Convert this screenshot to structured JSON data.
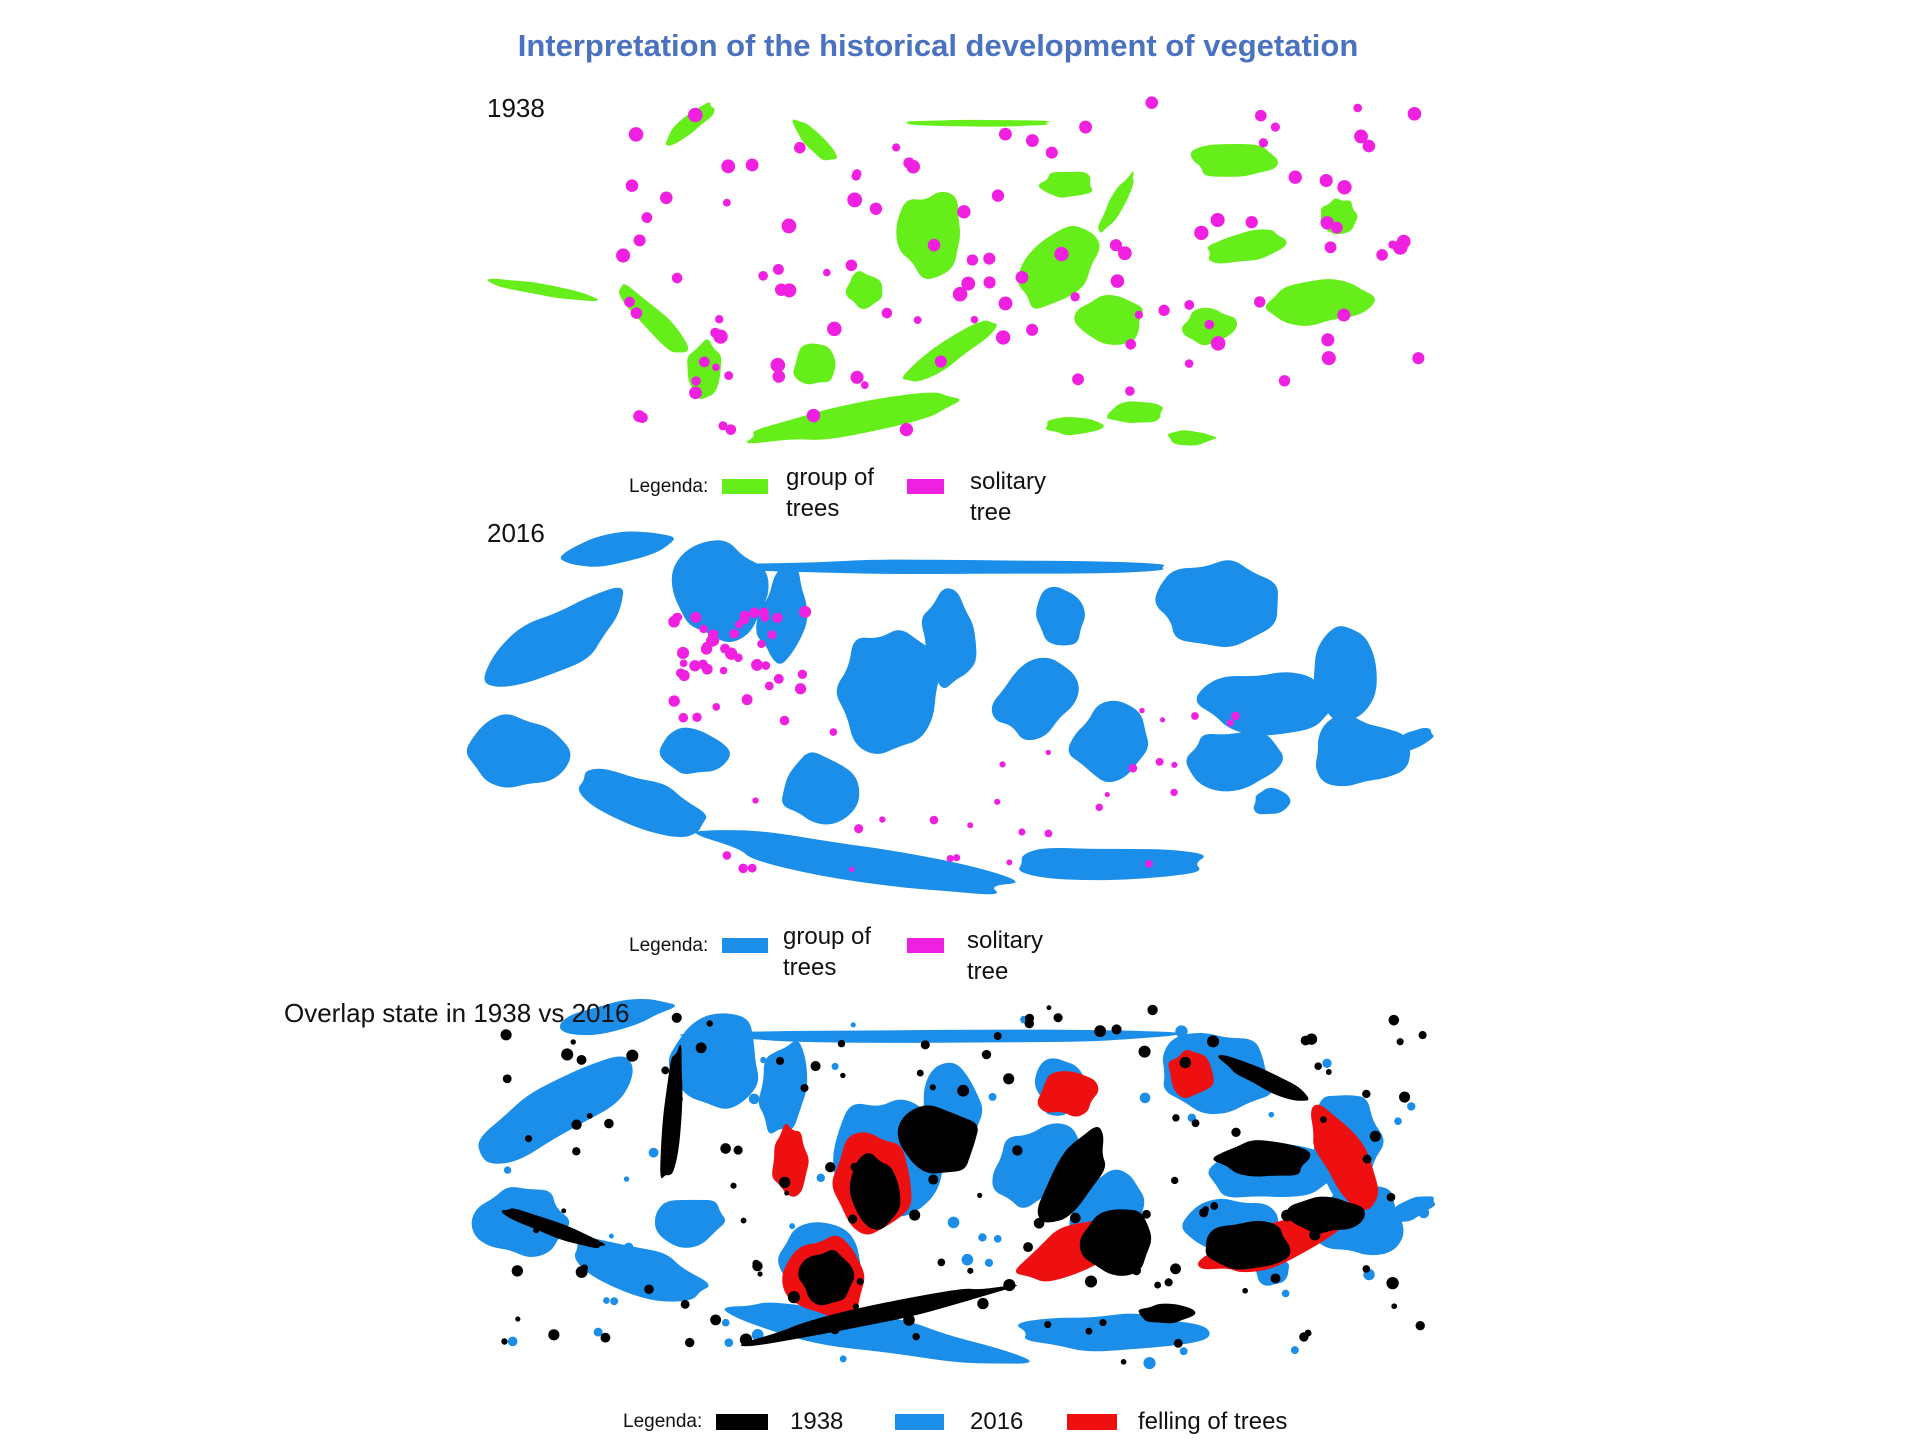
{
  "title": "Interpretation of the historical development of vegetation",
  "panels": [
    {
      "label": "1938",
      "legend": {
        "title": "Legenda:",
        "items": [
          "group of trees",
          "solitary tree"
        ]
      }
    },
    {
      "label": "2016",
      "legend": {
        "title": "Legenda:",
        "items": [
          "group of trees",
          "solitary tree"
        ]
      }
    },
    {
      "label": "Overlap state in 1938 vs 2016",
      "legend": {
        "title": "Legenda:",
        "items": [
          "1938",
          "2016",
          "felling of trees"
        ]
      }
    }
  ]
}
